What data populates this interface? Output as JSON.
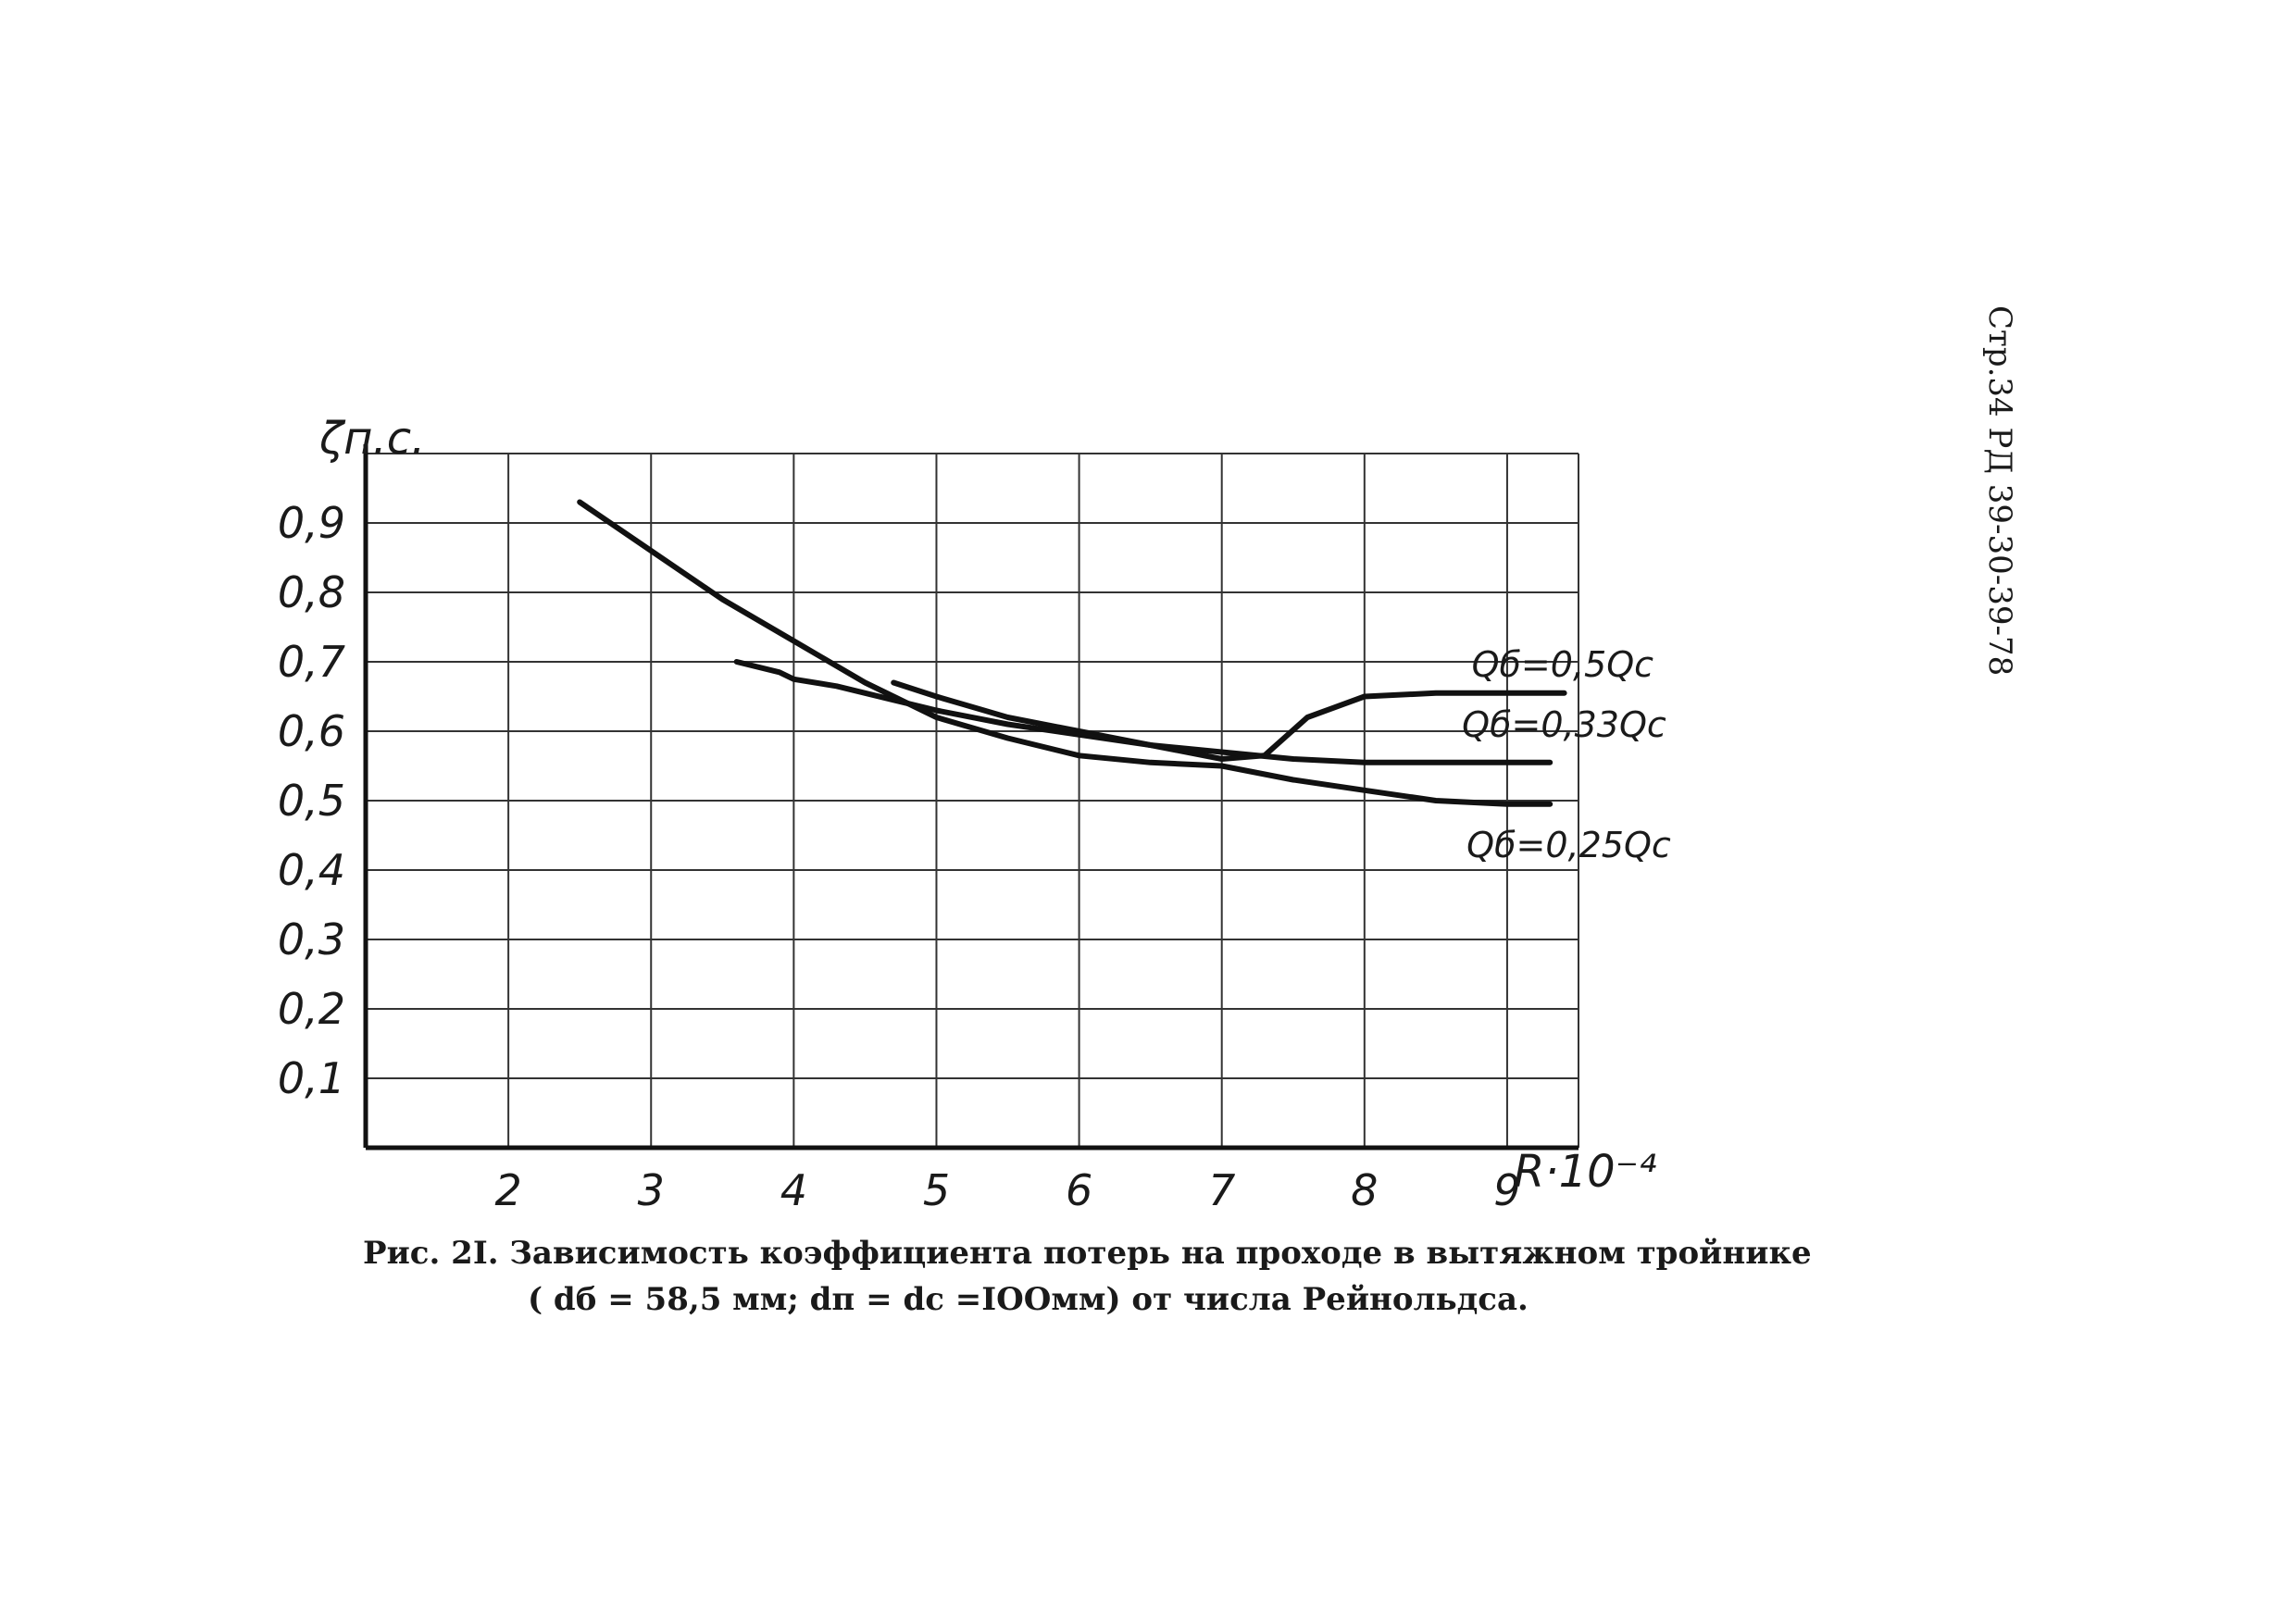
{
  "page_header": "Стр.34 РД 39-30-39-78",
  "caption": {
    "line1": "Рис. 2I. Зависимость коэффициента потерь на проходе в вытяжном тройнике",
    "line2": "( dб = 58,5 мм;   dп  =   dс  =IOOмм) от числа Рейнольдса."
  },
  "chart_data": {
    "type": "line",
    "title": "",
    "ylabel": "ζп.с.",
    "xlabel": "R·10⁻⁴",
    "xlim": [
      1,
      9.5
    ],
    "ylim": [
      0,
      1.0
    ],
    "x_ticks": [
      "2",
      "3",
      "4",
      "5",
      "6",
      "7",
      "8",
      "9"
    ],
    "y_ticks": [
      "0,1",
      "0,2",
      "0,3",
      "0,4",
      "0,5",
      "0,6",
      "0,7",
      "0,8",
      "0,9"
    ],
    "grid": true,
    "series": [
      {
        "name": "Qб=0,5Qс",
        "x": [
          4.7,
          5.0,
          5.5,
          6.0,
          6.5,
          7.0,
          7.3,
          7.6,
          8.0,
          8.5,
          9.0,
          9.4
        ],
        "y": [
          0.67,
          0.65,
          0.62,
          0.6,
          0.58,
          0.56,
          0.565,
          0.62,
          0.65,
          0.655,
          0.655,
          0.655
        ]
      },
      {
        "name": "Qб=0,33Qс",
        "x": [
          3.6,
          3.9,
          4.0,
          4.3,
          4.7,
          5.0,
          5.5,
          6.0,
          6.5,
          7.0,
          7.5,
          8.0,
          8.5,
          9.0,
          9.3
        ],
        "y": [
          0.7,
          0.685,
          0.675,
          0.665,
          0.645,
          0.63,
          0.61,
          0.595,
          0.58,
          0.57,
          0.56,
          0.555,
          0.555,
          0.555,
          0.555
        ]
      },
      {
        "name": "Qб=0,25Qс",
        "x": [
          2.5,
          3.0,
          3.5,
          4.0,
          4.5,
          5.0,
          5.5,
          6.0,
          6.5,
          7.0,
          7.5,
          8.0,
          8.5,
          9.0,
          9.3
        ],
        "y": [
          0.93,
          0.86,
          0.79,
          0.73,
          0.67,
          0.62,
          0.59,
          0.565,
          0.555,
          0.55,
          0.53,
          0.515,
          0.5,
          0.495,
          0.495
        ]
      }
    ]
  }
}
